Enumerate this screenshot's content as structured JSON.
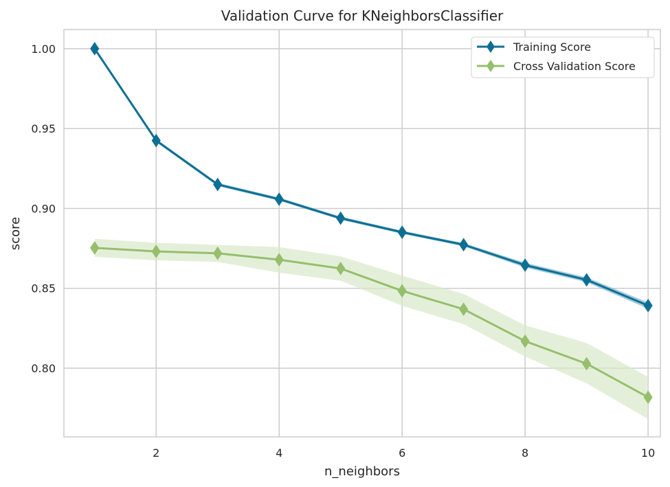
{
  "chart_data": {
    "type": "line",
    "title": "Validation Curve for KNeighborsClassifier",
    "xlabel": "n_neighbors",
    "ylabel": "score",
    "xlim": [
      0.5,
      10.2
    ],
    "ylim": [
      0.757,
      1.012
    ],
    "xticks": [
      2,
      4,
      6,
      8,
      10
    ],
    "yticks": [
      0.8,
      0.85,
      0.9,
      0.95,
      1.0
    ],
    "xtick_labels": [
      "2",
      "4",
      "6",
      "8",
      "10"
    ],
    "ytick_labels": [
      "0.80",
      "0.85",
      "0.90",
      "0.95",
      "1.00"
    ],
    "grid": true,
    "legend_position": "top-right",
    "x": [
      1,
      2,
      3,
      4,
      5,
      6,
      7,
      8,
      9,
      10
    ],
    "series": [
      {
        "name": "Training Score",
        "color": "#0e6f94",
        "band_color": "#7ab6d0",
        "marker": "diamond",
        "values": [
          1.0,
          0.9425,
          0.915,
          0.9058,
          0.8939,
          0.8851,
          0.8773,
          0.8645,
          0.8553,
          0.8392
        ],
        "band_lower": [
          1.0,
          0.9415,
          0.914,
          0.9048,
          0.8929,
          0.8841,
          0.8763,
          0.863,
          0.8538,
          0.8372
        ],
        "band_upper": [
          1.0,
          0.9435,
          0.916,
          0.9068,
          0.8949,
          0.8861,
          0.8783,
          0.866,
          0.8568,
          0.8412
        ]
      },
      {
        "name": "Cross Validation Score",
        "color": "#95bf6c",
        "band_color": "#d8e8c9",
        "marker": "diamond",
        "values": [
          0.8753,
          0.8731,
          0.8719,
          0.8679,
          0.8624,
          0.8484,
          0.8369,
          0.8169,
          0.8028,
          0.7818
        ],
        "band_lower": [
          0.8697,
          0.8675,
          0.8665,
          0.8598,
          0.8548,
          0.839,
          0.8275,
          0.8073,
          0.7905,
          0.7682
        ],
        "band_upper": [
          0.881,
          0.8785,
          0.8772,
          0.8758,
          0.87,
          0.858,
          0.8465,
          0.8268,
          0.8158,
          0.7945
        ]
      }
    ]
  }
}
